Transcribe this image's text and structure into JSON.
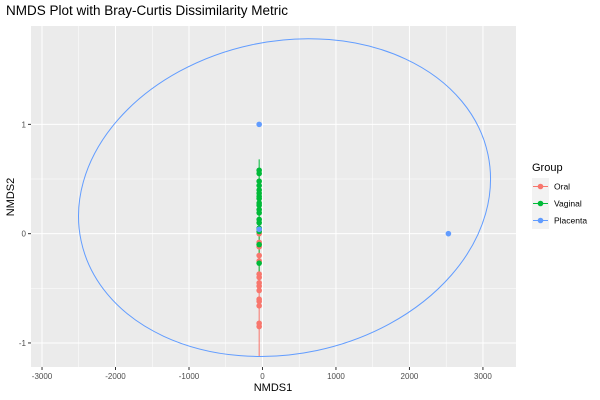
{
  "chart_data": {
    "type": "scatter",
    "title": "NMDS Plot with Bray-Curtis Dissimilarity Metric",
    "xlabel": "NMDS1",
    "ylabel": "NMDS2",
    "xlim": [
      -3150,
      3450
    ],
    "ylim": [
      -1.22,
      1.9
    ],
    "x_ticks": [
      -3000,
      -2000,
      -1000,
      0,
      1000,
      2000,
      3000
    ],
    "y_ticks": [
      -1,
      0,
      1
    ],
    "grid": true,
    "legend": {
      "title": "Group",
      "position": "right"
    },
    "series": [
      {
        "name": "Oral",
        "color": "#F8766D",
        "x": [
          -45,
          -45,
          -45,
          -45,
          -45,
          -45,
          -45,
          -45,
          -45,
          -45,
          -45,
          -45,
          -45,
          -45,
          -45,
          -45
        ],
        "y": [
          -0.85,
          -0.82,
          -0.66,
          -0.62,
          -0.6,
          -0.52,
          -0.48,
          -0.45,
          -0.4,
          -0.37,
          -0.25,
          -0.2,
          -0.12,
          -0.08,
          0.0,
          0.04
        ]
      },
      {
        "name": "Vaginal",
        "color": "#00BA38",
        "x": [
          -45,
          -45,
          -45,
          -45,
          -45,
          -45,
          -45,
          -45,
          -45,
          -45,
          -45,
          -45,
          -45,
          -45,
          -45,
          -45,
          -45,
          -45
        ],
        "y": [
          0.58,
          0.55,
          0.48,
          0.44,
          0.4,
          0.37,
          0.34,
          0.32,
          0.28,
          0.26,
          0.22,
          0.19,
          0.13,
          0.1,
          0.05,
          0.02,
          -0.1,
          -0.27
        ]
      },
      {
        "name": "Placenta",
        "color": "#619CFF",
        "x": [
          -45,
          2530,
          -45
        ],
        "y": [
          1.0,
          0.0,
          0.04
        ]
      }
    ],
    "ellipses": [
      {
        "group": "Oral",
        "color": "#F8766D",
        "type": "segment",
        "x": [
          -45,
          -45
        ],
        "y": [
          -1.12,
          0.1
        ]
      },
      {
        "group": "Vaginal",
        "color": "#00BA38",
        "type": "segment",
        "x": [
          -45,
          -45
        ],
        "y": [
          -0.35,
          0.68
        ]
      },
      {
        "group": "Placenta",
        "color": "#619CFF",
        "type": "ellipse",
        "cx": 300,
        "cy": 0.33,
        "rx": 2830,
        "ry": 1.43,
        "angle_deg": -12
      }
    ]
  }
}
